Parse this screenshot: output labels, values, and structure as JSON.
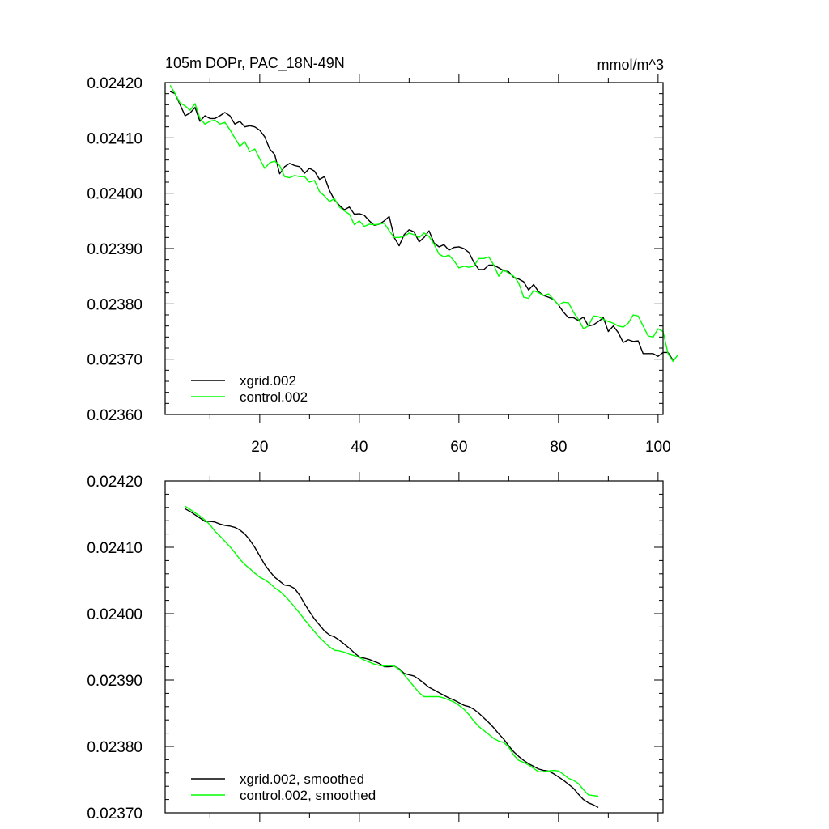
{
  "chart_data": [
    {
      "type": "line",
      "title": "105m DOPr, PAC_18N-49N",
      "units": "mmol/m^3",
      "xlabel": "",
      "ylabel": "",
      "xlim": [
        1,
        101
      ],
      "ylim": [
        0.0236,
        0.0242
      ],
      "x_ticks": [
        20,
        40,
        60,
        80,
        100
      ],
      "y_ticks": [
        "0.02360",
        "0.02370",
        "0.02380",
        "0.02390",
        "0.02400",
        "0.02410",
        "0.02420"
      ],
      "x_tick_labels": [
        "20",
        "40",
        "60",
        "80",
        "100"
      ],
      "x_start": 2,
      "legend_position": "bottom-left",
      "series": [
        {
          "name": "xgrid.002",
          "color": "#000000",
          "values": [
            0.024184,
            0.02418,
            0.02416,
            0.02414,
            0.024145,
            0.024155,
            0.02413,
            0.02414,
            0.024135,
            0.024135,
            0.02414,
            0.024146,
            0.02414,
            0.024125,
            0.02413,
            0.02412,
            0.024122,
            0.02412,
            0.024114,
            0.024102,
            0.02408,
            0.02407,
            0.024035,
            0.024048,
            0.024054,
            0.02405,
            0.024048,
            0.024036,
            0.024045,
            0.02404,
            0.024025,
            0.02403,
            0.024005,
            0.023988,
            0.023978,
            0.02397,
            0.023975,
            0.023962,
            0.023963,
            0.02396,
            0.02395,
            0.023942,
            0.023944,
            0.02395,
            0.023958,
            0.02392,
            0.023905,
            0.023925,
            0.023934,
            0.02393,
            0.023912,
            0.02392,
            0.023932,
            0.02391,
            0.023903,
            0.023907,
            0.023897,
            0.023902,
            0.023903,
            0.0239,
            0.023893,
            0.023875,
            0.023862,
            0.023862,
            0.02387,
            0.02387,
            0.023865,
            0.02386,
            0.023858,
            0.023848,
            0.023845,
            0.02384,
            0.023825,
            0.023835,
            0.023822,
            0.023815,
            0.023812,
            0.023808,
            0.023798,
            0.023785,
            0.023775,
            0.023775,
            0.02377,
            0.023776,
            0.02376,
            0.023762,
            0.023768,
            0.023775,
            0.02375,
            0.02376,
            0.023748,
            0.02373,
            0.023735,
            0.023732,
            0.023733,
            0.02371,
            0.02371,
            0.02371,
            0.023705,
            0.023712,
            0.023712,
            0.023698
          ]
        },
        {
          "name": "control.002",
          "color": "#00ff00",
          "values": [
            0.024195,
            0.02418,
            0.024163,
            0.024158,
            0.02415,
            0.024162,
            0.024135,
            0.024125,
            0.02413,
            0.024132,
            0.024125,
            0.024128,
            0.024115,
            0.0241,
            0.024085,
            0.024093,
            0.024075,
            0.02408,
            0.024062,
            0.024045,
            0.024055,
            0.024058,
            0.02405,
            0.02403,
            0.024028,
            0.024032,
            0.02403,
            0.02403,
            0.02402,
            0.024023,
            0.024003,
            0.023995,
            0.023985,
            0.02399,
            0.023975,
            0.023968,
            0.023962,
            0.023943,
            0.02395,
            0.02394,
            0.023944,
            0.023943,
            0.023944,
            0.023946,
            0.023932,
            0.02392,
            0.02392,
            0.023922,
            0.023928,
            0.023925,
            0.02392,
            0.023928,
            0.023922,
            0.023908,
            0.02389,
            0.023885,
            0.023888,
            0.023878,
            0.023865,
            0.023868,
            0.023866,
            0.023868,
            0.023882,
            0.023882,
            0.023885,
            0.02387,
            0.02385,
            0.023862,
            0.023855,
            0.02385,
            0.023838,
            0.023812,
            0.02381,
            0.023824,
            0.02382,
            0.023815,
            0.023818,
            0.023808,
            0.023798,
            0.023803,
            0.023802,
            0.023785,
            0.023772,
            0.023755,
            0.02376,
            0.023778,
            0.023777,
            0.023772,
            0.023768,
            0.023765,
            0.02376,
            0.023758,
            0.023765,
            0.02378,
            0.023778,
            0.02376,
            0.023742,
            0.02374,
            0.023755,
            0.02375,
            0.02371,
            0.023696,
            0.023708
          ]
        }
      ]
    },
    {
      "type": "line",
      "title": "",
      "xlabel": "",
      "ylabel": "",
      "xlim": [
        1,
        101
      ],
      "ylim": [
        0.0237,
        0.0242
      ],
      "x_ticks": [
        20,
        40,
        60,
        80,
        100
      ],
      "y_ticks": [
        "0.02370",
        "0.02380",
        "0.02390",
        "0.02400",
        "0.02410",
        "0.02420"
      ],
      "x_tick_labels": [],
      "x_start": 5,
      "legend_position": "bottom-left",
      "series": [
        {
          "name": "xgrid.002, smoothed",
          "color": "#000000",
          "values": [
            0.024158,
            0.024154,
            0.024149,
            0.024144,
            0.024139,
            0.024139,
            0.024138,
            0.024135,
            0.024133,
            0.024132,
            0.02413,
            0.024126,
            0.02412,
            0.024111,
            0.0241,
            0.024087,
            0.024074,
            0.024064,
            0.024055,
            0.024049,
            0.024043,
            0.024042,
            0.024038,
            0.024028,
            0.024015,
            0.024003,
            0.023992,
            0.023983,
            0.023974,
            0.023968,
            0.023965,
            0.02396,
            0.023954,
            0.023948,
            0.023941,
            0.023935,
            0.023933,
            0.023931,
            0.023928,
            0.023925,
            0.02392,
            0.02392,
            0.023921,
            0.023917,
            0.02391,
            0.023908,
            0.023906,
            0.023901,
            0.023895,
            0.023889,
            0.023885,
            0.023881,
            0.023877,
            0.023873,
            0.02387,
            0.023866,
            0.023862,
            0.02386,
            0.023856,
            0.02385,
            0.023843,
            0.023836,
            0.023828,
            0.023819,
            0.023811,
            0.023801,
            0.023792,
            0.023785,
            0.023779,
            0.023774,
            0.02377,
            0.023766,
            0.023764,
            0.023763,
            0.023759,
            0.023754,
            0.023749,
            0.023743,
            0.023737,
            0.023728,
            0.02372,
            0.023715,
            0.023712,
            0.023708
          ]
        },
        {
          "name": "control.002, smoothed",
          "color": "#00ff00",
          "values": [
            0.024162,
            0.024157,
            0.024152,
            0.024147,
            0.024141,
            0.024134,
            0.024124,
            0.024117,
            0.024109,
            0.024101,
            0.024092,
            0.024082,
            0.024074,
            0.024068,
            0.024061,
            0.024055,
            0.024051,
            0.024046,
            0.024039,
            0.024034,
            0.024027,
            0.024019,
            0.02401,
            0.024001,
            0.023991,
            0.023982,
            0.023973,
            0.023964,
            0.023957,
            0.02395,
            0.023945,
            0.023944,
            0.023942,
            0.023939,
            0.023937,
            0.023934,
            0.02393,
            0.023927,
            0.023924,
            0.023922,
            0.023921,
            0.023922,
            0.023921,
            0.023916,
            0.023908,
            0.023899,
            0.02389,
            0.023881,
            0.023875,
            0.023875,
            0.023875,
            0.023875,
            0.023873,
            0.02387,
            0.023867,
            0.023862,
            0.023856,
            0.023848,
            0.023838,
            0.02383,
            0.023824,
            0.023818,
            0.023812,
            0.023808,
            0.023806,
            0.023799,
            0.023787,
            0.023779,
            0.023776,
            0.023772,
            0.023767,
            0.023762,
            0.023762,
            0.023763,
            0.023764,
            0.023763,
            0.023758,
            0.023752,
            0.023749,
            0.023744,
            0.023735,
            0.023727,
            0.023726,
            0.023725
          ]
        }
      ]
    }
  ]
}
